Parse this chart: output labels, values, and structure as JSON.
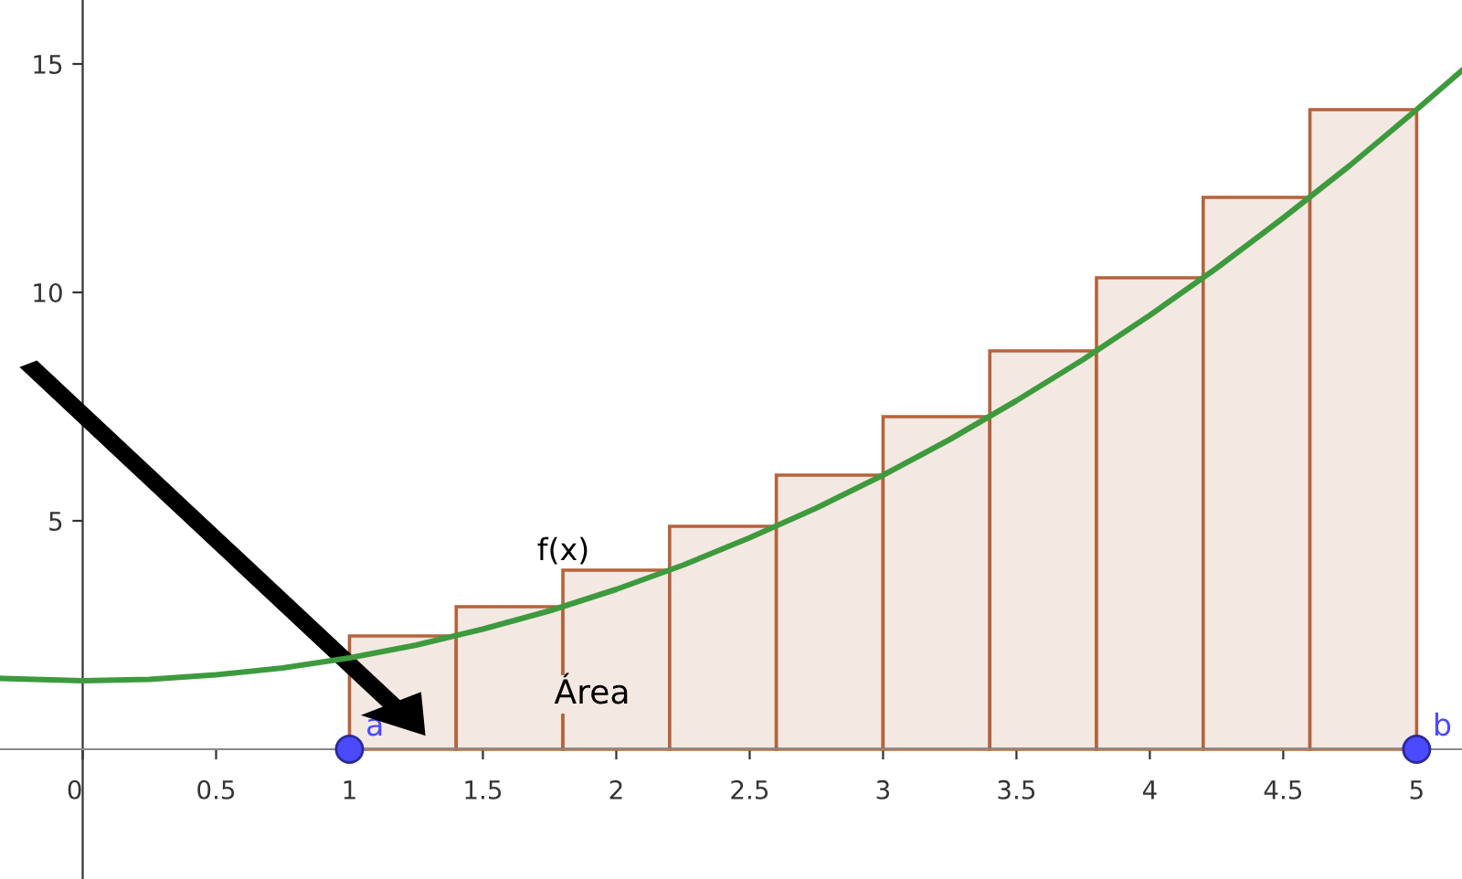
{
  "chart_data": {
    "type": "histogram",
    "bins": [
      1,
      1.4,
      1.8,
      2.2,
      2.6,
      3.0,
      3.4,
      3.8,
      4.2,
      4.6,
      5.0
    ],
    "values": [
      2.48,
      3.12,
      3.92,
      4.88,
      6.0,
      7.28,
      8.72,
      10.32,
      12.08,
      14.0
    ],
    "color": "#f4e8e2",
    "series": [
      {
        "type": "line",
        "name": "f(x)",
        "color": "#3d9a3d",
        "x": [
          -0.3,
          0,
          0.25,
          0.5,
          0.75,
          1,
          1.25,
          1.5,
          1.75,
          2,
          2.25,
          2.5,
          2.75,
          3,
          3.25,
          3.5,
          3.75,
          4,
          4.25,
          4.5,
          4.75,
          5,
          5.17
        ],
        "values": [
          1.55,
          1.5,
          1.53,
          1.63,
          1.78,
          2.0,
          2.28,
          2.63,
          3.03,
          3.5,
          4.03,
          4.63,
          5.28,
          6.0,
          6.78,
          7.63,
          8.53,
          9.5,
          10.53,
          11.63,
          12.78,
          14.0,
          14.86
        ]
      },
      {
        "type": "scatter",
        "marker": "circle",
        "color": "#4a4aff",
        "x": [
          1,
          5
        ],
        "values": [
          0,
          0
        ],
        "value_labels": [
          "a",
          "b"
        ]
      }
    ],
    "annotations": [
      "Área"
    ],
    "xlim": [
      -0.31,
      5.17
    ],
    "ylim": [
      -2.84,
      16.4
    ],
    "xticks": [
      0,
      0.5,
      1,
      1.5,
      2,
      2.5,
      3,
      3.5,
      4,
      4.5,
      5
    ],
    "yticks": [
      5,
      10,
      15
    ],
    "grid": false
  }
}
